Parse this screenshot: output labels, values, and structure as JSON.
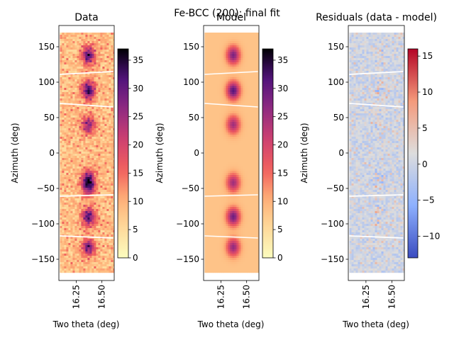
{
  "suptitle": "Fe-BCC (200): final fit",
  "chart_data": [
    {
      "type": "heatmap",
      "title": "Data",
      "xlabel": "Two theta (deg)",
      "ylabel": "Azimuth (deg)",
      "xlim": [
        16.08,
        16.62
      ],
      "ylim": [
        -180,
        180
      ],
      "xticks": [
        16.25,
        16.5
      ],
      "xtick_labels": [
        "16.25",
        "16.50"
      ],
      "yticks": [
        150,
        100,
        50,
        0,
        -50,
        -100,
        -150
      ],
      "ytick_labels": [
        "150",
        "100",
        "50",
        "0",
        "−50",
        "−100",
        "−150"
      ],
      "data_extent": {
        "x": [
          16.09,
          16.61
        ],
        "y": [
          -168,
          170
        ]
      },
      "colormap": "magma_r",
      "colorbar": {
        "min": 0,
        "max": 37,
        "ticks": [
          0,
          5,
          10,
          15,
          20,
          25,
          30,
          35
        ],
        "tick_labels": [
          "0",
          "5",
          "10",
          "15",
          "20",
          "25",
          "30",
          "35"
        ]
      },
      "peak_center_twotheta": 16.37,
      "peaks": [
        {
          "azimuth": 138,
          "intensity": 30
        },
        {
          "azimuth": 88,
          "intensity": 33
        },
        {
          "azimuth": 40,
          "intensity": 26
        },
        {
          "azimuth": -37,
          "intensity": 27
        },
        {
          "azimuth": -48,
          "intensity": 25
        },
        {
          "azimuth": -90,
          "intensity": 31
        },
        {
          "azimuth": -133,
          "intensity": 28
        }
      ],
      "background_level": 8
    },
    {
      "type": "heatmap",
      "title": "Model",
      "xlabel": "Two theta (deg)",
      "ylabel": "Azimuth (deg)",
      "xlim": [
        16.08,
        16.62
      ],
      "ylim": [
        -180,
        180
      ],
      "xticks": [
        16.25,
        16.5
      ],
      "xtick_labels": [
        "16.25",
        "16.50"
      ],
      "yticks": [
        150,
        100,
        50,
        0,
        -50,
        -100,
        -150
      ],
      "ytick_labels": [
        "150",
        "100",
        "50",
        "0",
        "−50",
        "−100",
        "−150"
      ],
      "data_extent": {
        "x": [
          16.09,
          16.61
        ],
        "y": [
          -168,
          170
        ]
      },
      "colormap": "magma_r",
      "colorbar": {
        "min": 0,
        "max": 37,
        "ticks": [
          0,
          5,
          10,
          15,
          20,
          25,
          30,
          35
        ],
        "tick_labels": [
          "0",
          "5",
          "10",
          "15",
          "20",
          "25",
          "30",
          "35"
        ]
      },
      "peak_center_twotheta": 16.37,
      "peaks": [
        {
          "azimuth": 138,
          "intensity": 28
        },
        {
          "azimuth": 88,
          "intensity": 31
        },
        {
          "azimuth": 40,
          "intensity": 25
        },
        {
          "azimuth": -42,
          "intensity": 25
        },
        {
          "azimuth": -90,
          "intensity": 29
        },
        {
          "azimuth": -133,
          "intensity": 26
        }
      ],
      "background_level": 8
    },
    {
      "type": "heatmap",
      "title": "Residuals (data - model)",
      "xlabel": "Two theta (deg)",
      "ylabel": "Azimuth (deg)",
      "xlim": [
        16.08,
        16.62
      ],
      "ylim": [
        -180,
        180
      ],
      "xticks": [
        16.25,
        16.5
      ],
      "xtick_labels": [
        "16.25",
        "16.50"
      ],
      "yticks": [
        150,
        100,
        50,
        0,
        -50,
        -100,
        -150
      ],
      "ytick_labels": [
        "150",
        "100",
        "50",
        "0",
        "−50",
        "−100",
        "−150"
      ],
      "data_extent": {
        "x": [
          16.09,
          16.61
        ],
        "y": [
          -168,
          170
        ]
      },
      "colormap": "coolwarm",
      "colorbar": {
        "min": -13,
        "max": 16,
        "ticks": [
          15,
          10,
          5,
          0,
          -5,
          -10
        ],
        "tick_labels": [
          "15",
          "10",
          "5",
          "0",
          "−5",
          "−10"
        ]
      },
      "peak_center_twotheta": 16.37,
      "residual_hotspots": [
        {
          "azimuth": 138,
          "amplitude": 4
        },
        {
          "azimuth": 88,
          "amplitude": 5
        },
        {
          "azimuth": 40,
          "amplitude": 3
        },
        {
          "azimuth": -37,
          "amplitude": 6
        },
        {
          "azimuth": -90,
          "amplitude": 5
        },
        {
          "azimuth": -133,
          "amplitude": 4
        }
      ]
    }
  ],
  "gap_lines": [
    {
      "y_left": 111,
      "y_right": 115
    },
    {
      "y_left": 70,
      "y_right": 65
    },
    {
      "y_left": -61,
      "y_right": -59
    },
    {
      "y_left": -117,
      "y_right": -120
    }
  ]
}
